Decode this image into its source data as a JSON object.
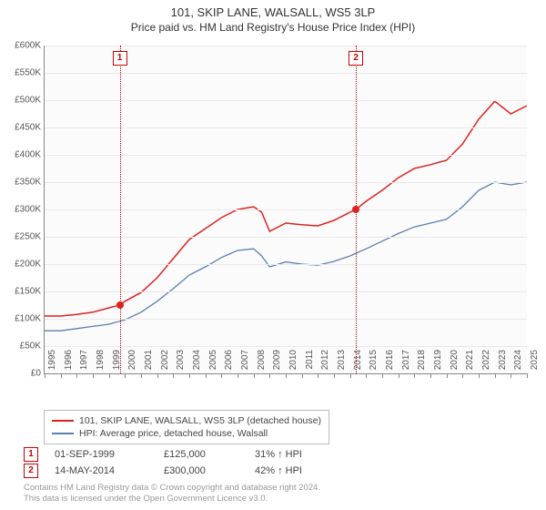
{
  "title": "101, SKIP LANE, WALSALL, WS5 3LP",
  "subtitle": "Price paid vs. HM Land Registry's House Price Index (HPI)",
  "chart": {
    "type": "line",
    "background_color": "#fbfbfb",
    "grid_color": "#e8e8e8",
    "axis_color": "#888888",
    "ylabel_fontsize": 10,
    "xlabel_fontsize": 10,
    "ylim": [
      0,
      600000
    ],
    "ytick_step": 50000,
    "yticks": [
      "£0",
      "£50K",
      "£100K",
      "£150K",
      "£200K",
      "£250K",
      "£300K",
      "£350K",
      "£400K",
      "£450K",
      "£500K",
      "£550K",
      "£600K"
    ],
    "xlim": [
      1995,
      2025
    ],
    "xticks": [
      1995,
      1996,
      1997,
      1998,
      1999,
      2000,
      2001,
      2002,
      2003,
      2004,
      2005,
      2006,
      2007,
      2008,
      2009,
      2010,
      2011,
      2012,
      2013,
      2014,
      2015,
      2016,
      2017,
      2018,
      2019,
      2020,
      2021,
      2022,
      2023,
      2024,
      2025
    ],
    "series": [
      {
        "name": "101, SKIP LANE, WALSALL, WS5 3LP (detached house)",
        "color": "#dd2222",
        "line_width": 1.5,
        "points": [
          [
            1995,
            105000
          ],
          [
            1996,
            105000
          ],
          [
            1997,
            108000
          ],
          [
            1998,
            112000
          ],
          [
            1999,
            120000
          ],
          [
            1999.67,
            125000
          ],
          [
            2000,
            132000
          ],
          [
            2001,
            148000
          ],
          [
            2002,
            175000
          ],
          [
            2003,
            210000
          ],
          [
            2004,
            245000
          ],
          [
            2005,
            265000
          ],
          [
            2006,
            285000
          ],
          [
            2007,
            300000
          ],
          [
            2008,
            305000
          ],
          [
            2008.5,
            295000
          ],
          [
            2009,
            260000
          ],
          [
            2010,
            275000
          ],
          [
            2011,
            272000
          ],
          [
            2012,
            270000
          ],
          [
            2013,
            280000
          ],
          [
            2014,
            295000
          ],
          [
            2014.37,
            300000
          ],
          [
            2015,
            315000
          ],
          [
            2016,
            335000
          ],
          [
            2017,
            358000
          ],
          [
            2018,
            375000
          ],
          [
            2019,
            382000
          ],
          [
            2020,
            390000
          ],
          [
            2021,
            420000
          ],
          [
            2022,
            465000
          ],
          [
            2023,
            498000
          ],
          [
            2024,
            475000
          ],
          [
            2025,
            490000
          ]
        ]
      },
      {
        "name": "HPI: Average price, detached house, Walsall",
        "color": "#5b7fb0",
        "line_width": 1.3,
        "points": [
          [
            1995,
            78000
          ],
          [
            1996,
            78000
          ],
          [
            1997,
            82000
          ],
          [
            1998,
            86000
          ],
          [
            1999,
            90000
          ],
          [
            2000,
            98000
          ],
          [
            2001,
            112000
          ],
          [
            2002,
            132000
          ],
          [
            2003,
            155000
          ],
          [
            2004,
            180000
          ],
          [
            2005,
            195000
          ],
          [
            2006,
            212000
          ],
          [
            2007,
            225000
          ],
          [
            2008,
            228000
          ],
          [
            2008.5,
            215000
          ],
          [
            2009,
            195000
          ],
          [
            2010,
            204000
          ],
          [
            2011,
            200000
          ],
          [
            2012,
            198000
          ],
          [
            2013,
            205000
          ],
          [
            2014,
            215000
          ],
          [
            2015,
            228000
          ],
          [
            2016,
            242000
          ],
          [
            2017,
            256000
          ],
          [
            2018,
            268000
          ],
          [
            2019,
            275000
          ],
          [
            2020,
            282000
          ],
          [
            2021,
            305000
          ],
          [
            2022,
            335000
          ],
          [
            2023,
            350000
          ],
          [
            2024,
            345000
          ],
          [
            2025,
            350000
          ]
        ]
      }
    ],
    "sale_markers": [
      {
        "n": "1",
        "x": 1999.67,
        "y": 125000
      },
      {
        "n": "2",
        "x": 2014.37,
        "y": 300000
      }
    ]
  },
  "legend": {
    "items": [
      {
        "color": "#dd2222",
        "label": "101, SKIP LANE, WALSALL, WS5 3LP (detached house)"
      },
      {
        "color": "#5b7fb0",
        "label": "HPI: Average price, detached house, Walsall"
      }
    ]
  },
  "sales": [
    {
      "n": "1",
      "date": "01-SEP-1999",
      "price": "£125,000",
      "pct": "31% ↑ HPI"
    },
    {
      "n": "2",
      "date": "14-MAY-2014",
      "price": "£300,000",
      "pct": "42% ↑ HPI"
    }
  ],
  "footnote_line1": "Contains HM Land Registry data © Crown copyright and database right 2024.",
  "footnote_line2": "This data is licensed under the Open Government Licence v3.0."
}
